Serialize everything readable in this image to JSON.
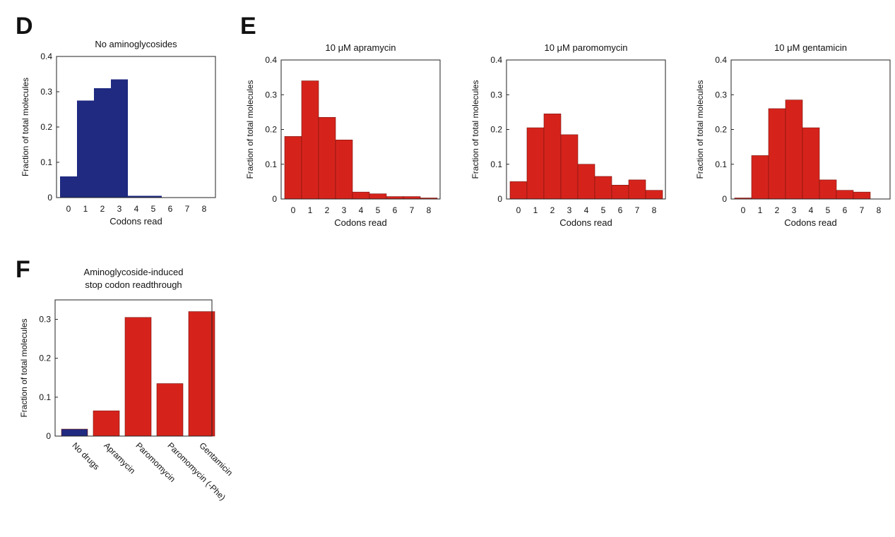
{
  "figure": {
    "panel_labels": [
      "D",
      "E",
      "F"
    ]
  },
  "colors": {
    "no_drug": "#1f2a80",
    "drug": "#d5231b"
  },
  "chart_data": [
    {
      "type": "bar",
      "panel": "D",
      "title": "No aminoglycosides",
      "xlabel": "Codons read",
      "ylabel": "Fraction of total molecules",
      "categories": [
        "0",
        "1",
        "2",
        "3",
        "4",
        "5",
        "6",
        "7",
        "8"
      ],
      "values": [
        0.06,
        0.275,
        0.31,
        0.335,
        0.005,
        0.005,
        0,
        0,
        0
      ],
      "ylim": [
        0,
        0.4
      ],
      "yticks": [
        "0",
        "0.1",
        "0.2",
        "0.3",
        "0.4"
      ],
      "color": "no_drug"
    },
    {
      "type": "bar",
      "panel": "E",
      "title": "10 μM apramycin",
      "xlabel": "Codons read",
      "ylabel": "Fraction of total molecules",
      "categories": [
        "0",
        "1",
        "2",
        "3",
        "4",
        "5",
        "6",
        "7",
        "8"
      ],
      "values": [
        0.18,
        0.34,
        0.235,
        0.17,
        0.02,
        0.015,
        0.007,
        0.007,
        0.003
      ],
      "ylim": [
        0,
        0.4
      ],
      "yticks": [
        "0",
        "0.1",
        "0.2",
        "0.3",
        "0.4"
      ],
      "color": "drug"
    },
    {
      "type": "bar",
      "panel": "E",
      "title": "10 μM paromomycin",
      "xlabel": "Codons read",
      "ylabel": "Fraction of total molecules",
      "categories": [
        "0",
        "1",
        "2",
        "3",
        "4",
        "5",
        "6",
        "7",
        "8"
      ],
      "values": [
        0.05,
        0.205,
        0.245,
        0.185,
        0.1,
        0.065,
        0.04,
        0.055,
        0.025
      ],
      "ylim": [
        0,
        0.4
      ],
      "yticks": [
        "0",
        "0.1",
        "0.2",
        "0.3",
        "0.4"
      ],
      "color": "drug"
    },
    {
      "type": "bar",
      "panel": "E",
      "title": "10 μM gentamicin",
      "xlabel": "Codons read",
      "ylabel": "Fraction of total molecules",
      "categories": [
        "0",
        "1",
        "2",
        "3",
        "4",
        "5",
        "6",
        "7",
        "8"
      ],
      "values": [
        0.003,
        0.125,
        0.26,
        0.285,
        0.205,
        0.055,
        0.025,
        0.02,
        0
      ],
      "ylim": [
        0,
        0.4
      ],
      "yticks": [
        "0",
        "0.1",
        "0.2",
        "0.3",
        "0.4"
      ],
      "color": "drug"
    },
    {
      "type": "bar",
      "panel": "F",
      "title": "Aminoglycoside-induced stop codon readthrough",
      "title_lines": [
        "Aminoglycoside-induced",
        "stop codon readthrough"
      ],
      "xlabel": "",
      "ylabel": "Fraction of total molecules",
      "categories": [
        "No drugs",
        "Apramycin",
        "Paromomycin",
        "Paromomycin (-Phe)",
        "Gentamicin"
      ],
      "values": [
        0.018,
        0.065,
        0.305,
        0.135,
        0.32
      ],
      "ylim": [
        0,
        0.35
      ],
      "yticks": [
        "0",
        "0.1",
        "0.2",
        "0.3"
      ],
      "colors": [
        "no_drug",
        "drug",
        "drug",
        "drug",
        "drug"
      ]
    }
  ]
}
